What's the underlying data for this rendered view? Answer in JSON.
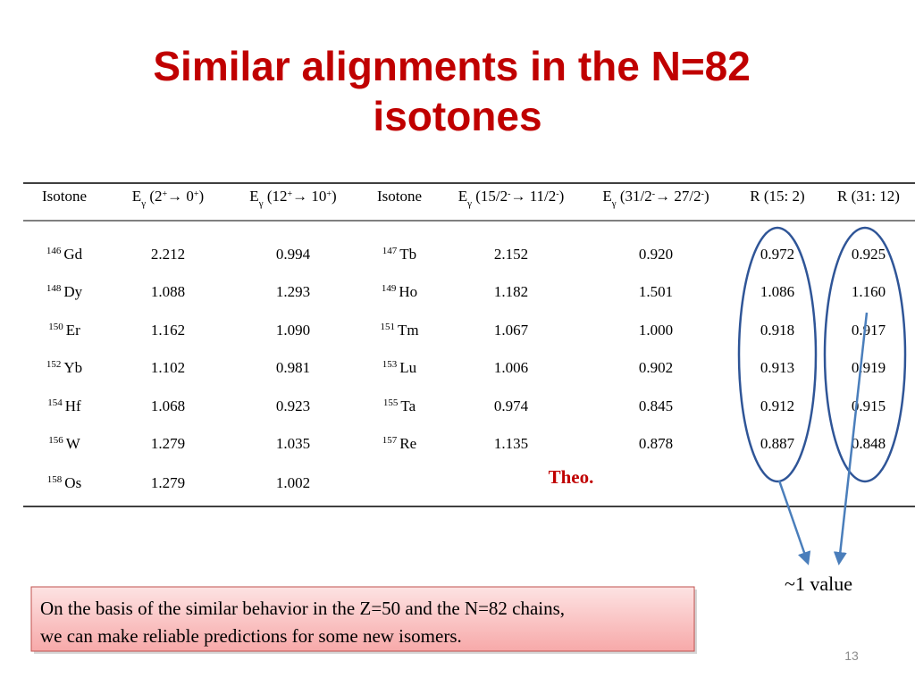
{
  "title": "Similar alignments in the N=82 isotones",
  "table": {
    "header": [
      [
        {
          "t": "Isotone"
        }
      ],
      [
        {
          "t": "E"
        },
        {
          "sub": "γ"
        },
        {
          "t": " (2"
        },
        {
          "sup": "+"
        },
        {
          "t": "→ 0"
        },
        {
          "sup": "+"
        },
        {
          "t": ")"
        }
      ],
      [
        {
          "t": "E"
        },
        {
          "sub": "γ"
        },
        {
          "t": " (12"
        },
        {
          "sup": "+"
        },
        {
          "t": "→ 10"
        },
        {
          "sup": "+"
        },
        {
          "t": ")"
        }
      ],
      [
        {
          "t": "Isotone"
        }
      ],
      [
        {
          "t": "E"
        },
        {
          "sub": "γ"
        },
        {
          "t": " (15/2"
        },
        {
          "sup": "-"
        },
        {
          "t": "→ 11/2"
        },
        {
          "sup": "-"
        },
        {
          "t": ")"
        }
      ],
      [
        {
          "t": "E"
        },
        {
          "sub": "γ"
        },
        {
          "t": " (31/2"
        },
        {
          "sup": "-"
        },
        {
          "t": "→ 27/2"
        },
        {
          "sup": "-"
        },
        {
          "t": ")"
        }
      ],
      [
        {
          "t": "R (15: 2)"
        }
      ],
      [
        {
          "t": "R (31: 12)"
        }
      ]
    ],
    "rows": [
      {
        "isotope1": {
          "mass": "146",
          "symbol": "Gd"
        },
        "e1": "2.212",
        "e2": "0.994",
        "isotope2": {
          "mass": "147",
          "symbol": "Tb"
        },
        "e3": "2.152",
        "e4": "0.920",
        "r15": "0.972",
        "r31": "0.925"
      },
      {
        "isotope1": {
          "mass": "148",
          "symbol": "Dy"
        },
        "e1": "1.088",
        "e2": "1.293",
        "isotope2": {
          "mass": "149",
          "symbol": "Ho"
        },
        "e3": "1.182",
        "e4": "1.501",
        "r15": "1.086",
        "r31": "1.160"
      },
      {
        "isotope1": {
          "mass": "150",
          "symbol": "Er"
        },
        "e1": "1.162",
        "e2": "1.090",
        "isotope2": {
          "mass": "151",
          "symbol": "Tm"
        },
        "e3": "1.067",
        "e4": "1.000",
        "r15": "0.918",
        "r31": "0.917"
      },
      {
        "isotope1": {
          "mass": "152",
          "symbol": "Yb"
        },
        "e1": "1.102",
        "e2": "0.981",
        "isotope2": {
          "mass": "153",
          "symbol": "Lu"
        },
        "e3": "1.006",
        "e4": "0.902",
        "r15": "0.913",
        "r31": "0.919"
      },
      {
        "isotope1": {
          "mass": "154",
          "symbol": "Hf"
        },
        "e1": "1.068",
        "e2": "0.923",
        "isotope2": {
          "mass": "155",
          "symbol": "Ta"
        },
        "e3": "0.974",
        "e4": "0.845",
        "r15": "0.912",
        "r31": "0.915"
      },
      {
        "isotope1": {
          "mass": "156",
          "symbol": "W"
        },
        "e1": "1.279",
        "e2": "1.035",
        "isotope2": {
          "mass": "157",
          "symbol": "Re"
        },
        "e3": "1.135",
        "e4": "0.878",
        "r15": "0.887",
        "r31": "0.848"
      },
      {
        "isotope1": {
          "mass": "158",
          "symbol": "Os"
        },
        "e1": "1.279",
        "e2": "1.002"
      }
    ]
  },
  "annotations": {
    "theo": "Theo.",
    "approx": "~1 value"
  },
  "note": [
    "On the basis of the similar behavior in the Z=50 and the N=82 chains,",
    "we can make reliable predictions for some new isomers."
  ],
  "page_number": "13"
}
